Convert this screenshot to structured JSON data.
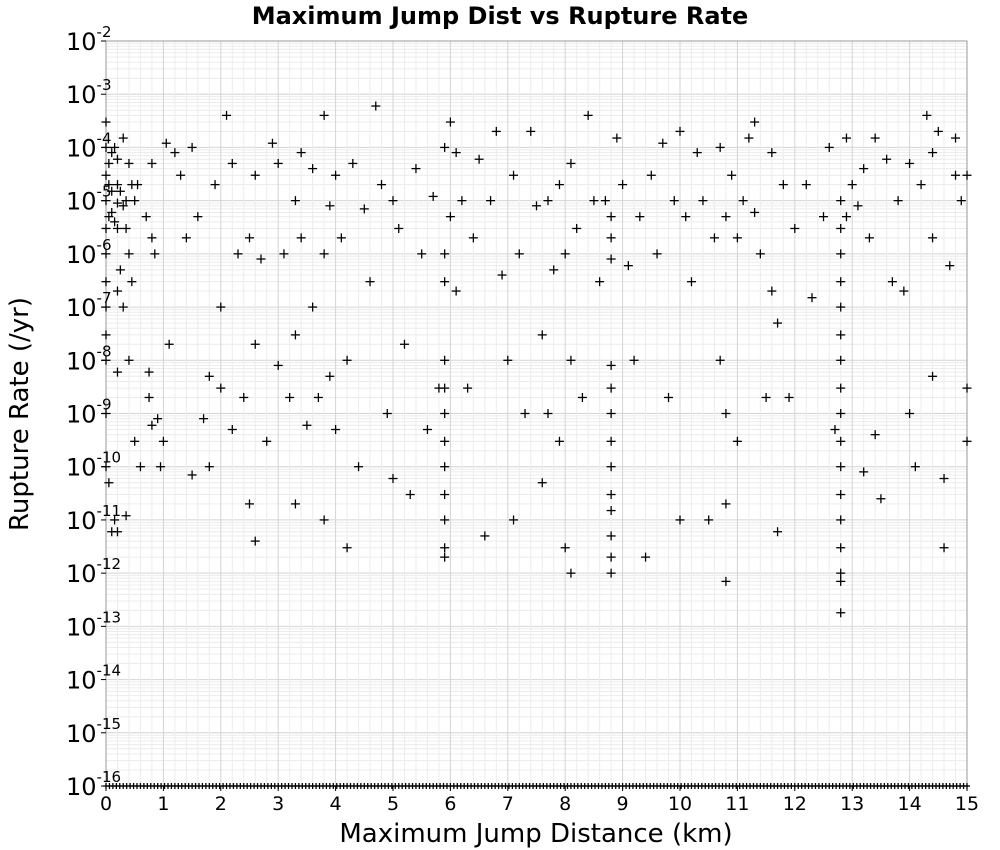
{
  "chart_data": {
    "type": "scatter",
    "title": "Maximum Jump Dist vs Rupture Rate",
    "xlabel": "Maximum Jump Distance (km)",
    "ylabel": "Rupture Rate (/yr)",
    "xlim": [
      0,
      15
    ],
    "ylim": [
      1e-16,
      0.01
    ],
    "yscale": "log",
    "grid": true,
    "marker": "plus",
    "marker_color": "#000000",
    "x_ticks": [
      "0",
      "1",
      "2",
      "3",
      "4",
      "5",
      "6",
      "7",
      "8",
      "9",
      "10",
      "11",
      "12",
      "13",
      "14",
      "15"
    ],
    "y_ticks": [
      {
        "base": "10",
        "exp": "-2"
      },
      {
        "base": "10",
        "exp": "-3"
      },
      {
        "base": "10",
        "exp": "-4"
      },
      {
        "base": "10",
        "exp": "-5"
      },
      {
        "base": "10",
        "exp": "-6"
      },
      {
        "base": "10",
        "exp": "-7"
      },
      {
        "base": "10",
        "exp": "-8"
      },
      {
        "base": "10",
        "exp": "-9"
      },
      {
        "base": "10",
        "exp": "-10"
      },
      {
        "base": "10",
        "exp": "-11"
      },
      {
        "base": "10",
        "exp": "-12"
      },
      {
        "base": "10",
        "exp": "-13"
      },
      {
        "base": "10",
        "exp": "-14"
      },
      {
        "base": "10",
        "exp": "-15"
      },
      {
        "base": "10",
        "exp": "-16"
      }
    ],
    "series": [
      {
        "points": [
          [
            0.0,
            0.0003
          ],
          [
            0.0,
            0.0001
          ],
          [
            0.0,
            3e-05
          ],
          [
            0.0,
            1e-05
          ],
          [
            0.0,
            3e-06
          ],
          [
            0.0,
            1e-06
          ],
          [
            0.0,
            3e-07
          ],
          [
            0.0,
            1e-07
          ],
          [
            0.0,
            3e-08
          ],
          [
            0.0,
            1e-08
          ],
          [
            0.0,
            1e-09
          ],
          [
            0.0,
            1e-10
          ],
          [
            0.05,
            5e-05
          ],
          [
            0.05,
            2e-05
          ],
          [
            0.05,
            5e-06
          ],
          [
            0.05,
            5e-11
          ],
          [
            0.1,
            8e-05
          ],
          [
            0.1,
            1.5e-05
          ],
          [
            0.1,
            6e-06
          ],
          [
            0.1,
            6e-12
          ],
          [
            0.15,
            0.0001
          ],
          [
            0.15,
            4e-06
          ],
          [
            0.15,
            1e-11
          ],
          [
            0.2,
            6e-05
          ],
          [
            0.2,
            2e-05
          ],
          [
            0.2,
            9e-06
          ],
          [
            0.2,
            3e-06
          ],
          [
            0.2,
            2e-07
          ],
          [
            0.2,
            6e-09
          ],
          [
            0.2,
            6e-12
          ],
          [
            0.25,
            1.5e-05
          ],
          [
            0.25,
            5e-07
          ],
          [
            0.3,
            0.00015
          ],
          [
            0.3,
            8e-06
          ],
          [
            0.3,
            1e-07
          ],
          [
            0.35,
            1e-05
          ],
          [
            0.35,
            3e-06
          ],
          [
            0.35,
            1.2e-11
          ],
          [
            0.4,
            5e-05
          ],
          [
            0.4,
            1e-06
          ],
          [
            0.4,
            1e-08
          ],
          [
            0.45,
            2e-05
          ],
          [
            0.45,
            3e-07
          ],
          [
            0.5,
            1e-05
          ],
          [
            0.5,
            3e-10
          ],
          [
            0.55,
            2e-05
          ],
          [
            0.6,
            1e-10
          ],
          [
            0.7,
            5e-06
          ],
          [
            0.75,
            6e-09
          ],
          [
            0.75,
            2e-09
          ],
          [
            0.8,
            5e-05
          ],
          [
            0.8,
            2e-06
          ],
          [
            0.8,
            6e-10
          ],
          [
            0.85,
            1e-06
          ],
          [
            0.9,
            8e-10
          ],
          [
            0.95,
            1e-10
          ],
          [
            1.0,
            3e-10
          ],
          [
            1.05,
            0.00012
          ],
          [
            1.1,
            2e-08
          ],
          [
            1.2,
            8e-05
          ],
          [
            1.3,
            3e-05
          ],
          [
            1.4,
            2e-06
          ],
          [
            1.5,
            0.0001
          ],
          [
            1.5,
            7e-11
          ],
          [
            1.6,
            5e-06
          ],
          [
            1.7,
            8e-10
          ],
          [
            1.8,
            5e-09
          ],
          [
            1.8,
            1e-10
          ],
          [
            1.9,
            2e-05
          ],
          [
            2.0,
            1e-07
          ],
          [
            2.0,
            3e-09
          ],
          [
            2.1,
            0.0004
          ],
          [
            2.2,
            5e-05
          ],
          [
            2.2,
            5e-10
          ],
          [
            2.3,
            1e-06
          ],
          [
            2.4,
            2e-09
          ],
          [
            2.5,
            2e-06
          ],
          [
            2.5,
            2e-11
          ],
          [
            2.6,
            3e-05
          ],
          [
            2.6,
            2e-08
          ],
          [
            2.6,
            4e-12
          ],
          [
            2.7,
            8e-07
          ],
          [
            2.8,
            3e-10
          ],
          [
            2.9,
            0.00012
          ],
          [
            3.0,
            5e-05
          ],
          [
            3.0,
            8e-09
          ],
          [
            3.1,
            1e-06
          ],
          [
            3.2,
            2e-09
          ],
          [
            3.3,
            1e-05
          ],
          [
            3.3,
            3e-08
          ],
          [
            3.3,
            2e-11
          ],
          [
            3.4,
            8e-05
          ],
          [
            3.4,
            2e-06
          ],
          [
            3.5,
            6e-10
          ],
          [
            3.6,
            4e-05
          ],
          [
            3.6,
            1e-07
          ],
          [
            3.7,
            2e-09
          ],
          [
            3.8,
            0.0004
          ],
          [
            3.8,
            1e-06
          ],
          [
            3.8,
            1e-11
          ],
          [
            3.9,
            8e-06
          ],
          [
            3.9,
            5e-09
          ],
          [
            4.0,
            3e-05
          ],
          [
            4.0,
            5e-10
          ],
          [
            4.1,
            2e-06
          ],
          [
            4.2,
            1e-08
          ],
          [
            4.2,
            3e-12
          ],
          [
            4.3,
            5e-05
          ],
          [
            4.4,
            1e-10
          ],
          [
            4.5,
            7e-06
          ],
          [
            4.6,
            3e-07
          ],
          [
            4.7,
            0.0006
          ],
          [
            4.8,
            2e-05
          ],
          [
            4.9,
            1e-09
          ],
          [
            5.0,
            1e-05
          ],
          [
            5.0,
            6e-11
          ],
          [
            5.1,
            3e-06
          ],
          [
            5.2,
            2e-08
          ],
          [
            5.3,
            3e-11
          ],
          [
            5.4,
            4e-05
          ],
          [
            5.5,
            1e-06
          ],
          [
            5.6,
            5e-10
          ],
          [
            5.7,
            1.2e-05
          ],
          [
            5.8,
            3e-09
          ],
          [
            5.9,
            0.0001
          ],
          [
            5.9,
            1e-06
          ],
          [
            5.9,
            3e-07
          ],
          [
            5.9,
            1e-08
          ],
          [
            5.9,
            3e-09
          ],
          [
            5.9,
            1e-09
          ],
          [
            5.9,
            3e-10
          ],
          [
            5.9,
            1e-10
          ],
          [
            5.9,
            3e-11
          ],
          [
            5.9,
            1e-11
          ],
          [
            5.9,
            3e-12
          ],
          [
            5.9,
            2e-12
          ],
          [
            6.0,
            0.0003
          ],
          [
            6.0,
            5e-06
          ],
          [
            6.1,
            8e-05
          ],
          [
            6.1,
            2e-07
          ],
          [
            6.2,
            1e-05
          ],
          [
            6.3,
            3e-09
          ],
          [
            6.4,
            2e-06
          ],
          [
            6.5,
            6e-05
          ],
          [
            6.6,
            5e-12
          ],
          [
            6.7,
            1e-05
          ],
          [
            6.8,
            0.0002
          ],
          [
            6.9,
            4e-07
          ],
          [
            7.0,
            1e-08
          ],
          [
            7.1,
            3e-05
          ],
          [
            7.1,
            1e-11
          ],
          [
            7.2,
            1e-06
          ],
          [
            7.3,
            1e-09
          ],
          [
            7.4,
            0.0002
          ],
          [
            7.5,
            8e-06
          ],
          [
            7.6,
            3e-08
          ],
          [
            7.6,
            5e-11
          ],
          [
            7.7,
            1e-05
          ],
          [
            7.7,
            1e-09
          ],
          [
            7.8,
            5e-07
          ],
          [
            7.9,
            2e-05
          ],
          [
            7.9,
            3e-10
          ],
          [
            8.0,
            1e-06
          ],
          [
            8.0,
            3e-12
          ],
          [
            8.1,
            5e-05
          ],
          [
            8.1,
            1e-08
          ],
          [
            8.1,
            1e-12
          ],
          [
            8.2,
            3e-06
          ],
          [
            8.3,
            2e-09
          ],
          [
            8.4,
            0.0004
          ],
          [
            8.5,
            1e-05
          ],
          [
            8.6,
            3e-07
          ],
          [
            8.7,
            1e-05
          ],
          [
            8.8,
            5e-06
          ],
          [
            8.8,
            2e-06
          ],
          [
            8.8,
            8e-07
          ],
          [
            8.8,
            8e-09
          ],
          [
            8.8,
            3e-09
          ],
          [
            8.8,
            1e-09
          ],
          [
            8.8,
            3e-10
          ],
          [
            8.8,
            1e-10
          ],
          [
            8.8,
            3e-11
          ],
          [
            8.8,
            1.5e-11
          ],
          [
            8.8,
            5e-12
          ],
          [
            8.8,
            2e-12
          ],
          [
            8.8,
            1e-12
          ],
          [
            8.9,
            0.00015
          ],
          [
            9.0,
            2e-05
          ],
          [
            9.1,
            6e-07
          ],
          [
            9.2,
            1e-08
          ],
          [
            9.3,
            5e-06
          ],
          [
            9.4,
            2e-12
          ],
          [
            9.5,
            3e-05
          ],
          [
            9.6,
            1e-06
          ],
          [
            9.7,
            0.00012
          ],
          [
            9.8,
            2e-09
          ],
          [
            9.9,
            1e-05
          ],
          [
            10.0,
            0.0002
          ],
          [
            10.0,
            1e-11
          ],
          [
            10.1,
            5e-06
          ],
          [
            10.2,
            3e-07
          ],
          [
            10.3,
            8e-05
          ],
          [
            10.4,
            1e-05
          ],
          [
            10.5,
            1e-11
          ],
          [
            10.6,
            2e-06
          ],
          [
            10.7,
            0.0001
          ],
          [
            10.7,
            1e-08
          ],
          [
            10.8,
            5e-06
          ],
          [
            10.8,
            1e-09
          ],
          [
            10.8,
            2e-11
          ],
          [
            10.8,
            7e-13
          ],
          [
            10.9,
            3e-05
          ],
          [
            11.0,
            2e-06
          ],
          [
            11.0,
            3e-10
          ],
          [
            11.1,
            1e-05
          ],
          [
            11.2,
            0.00015
          ],
          [
            11.3,
            0.0003
          ],
          [
            11.3,
            6e-06
          ],
          [
            11.4,
            1e-06
          ],
          [
            11.5,
            2e-09
          ],
          [
            11.6,
            8e-05
          ],
          [
            11.6,
            2e-07
          ],
          [
            11.7,
            5e-08
          ],
          [
            11.7,
            6e-12
          ],
          [
            11.8,
            2e-05
          ],
          [
            11.9,
            2e-09
          ],
          [
            12.0,
            3e-06
          ],
          [
            12.2,
            2e-05
          ],
          [
            12.3,
            1.5e-07
          ],
          [
            12.5,
            5e-06
          ],
          [
            12.6,
            0.0001
          ],
          [
            12.7,
            5e-10
          ],
          [
            12.8,
            1e-05
          ],
          [
            12.8,
            3e-06
          ],
          [
            12.8,
            1e-06
          ],
          [
            12.8,
            3e-07
          ],
          [
            12.8,
            1e-07
          ],
          [
            12.8,
            3e-08
          ],
          [
            12.8,
            1e-08
          ],
          [
            12.8,
            3e-09
          ],
          [
            12.8,
            1e-09
          ],
          [
            12.8,
            3e-10
          ],
          [
            12.8,
            1e-10
          ],
          [
            12.8,
            3e-11
          ],
          [
            12.8,
            1e-11
          ],
          [
            12.8,
            3e-12
          ],
          [
            12.8,
            1e-12
          ],
          [
            12.8,
            7e-13
          ],
          [
            12.8,
            1.8e-13
          ],
          [
            12.9,
            5e-06
          ],
          [
            12.9,
            0.00015
          ],
          [
            13.0,
            2e-05
          ],
          [
            13.1,
            8e-06
          ],
          [
            13.2,
            4e-05
          ],
          [
            13.2,
            8e-11
          ],
          [
            13.3,
            2e-06
          ],
          [
            13.4,
            0.00015
          ],
          [
            13.4,
            4e-10
          ],
          [
            13.5,
            2.5e-11
          ],
          [
            13.6,
            6e-05
          ],
          [
            13.7,
            3e-07
          ],
          [
            13.8,
            1e-05
          ],
          [
            13.9,
            2e-07
          ],
          [
            14.0,
            5e-05
          ],
          [
            14.0,
            1e-09
          ],
          [
            14.1,
            1e-10
          ],
          [
            14.2,
            2e-05
          ],
          [
            14.3,
            0.0004
          ],
          [
            14.4,
            8e-05
          ],
          [
            14.4,
            2e-06
          ],
          [
            14.4,
            5e-09
          ],
          [
            14.5,
            0.0002
          ],
          [
            14.6,
            6e-11
          ],
          [
            14.6,
            3e-12
          ],
          [
            14.7,
            6e-07
          ],
          [
            14.8,
            0.00015
          ],
          [
            14.8,
            3e-05
          ],
          [
            14.9,
            1e-05
          ],
          [
            15.0,
            3e-05
          ],
          [
            15.0,
            3e-09
          ],
          [
            15.0,
            3e-10
          ]
        ]
      }
    ]
  }
}
